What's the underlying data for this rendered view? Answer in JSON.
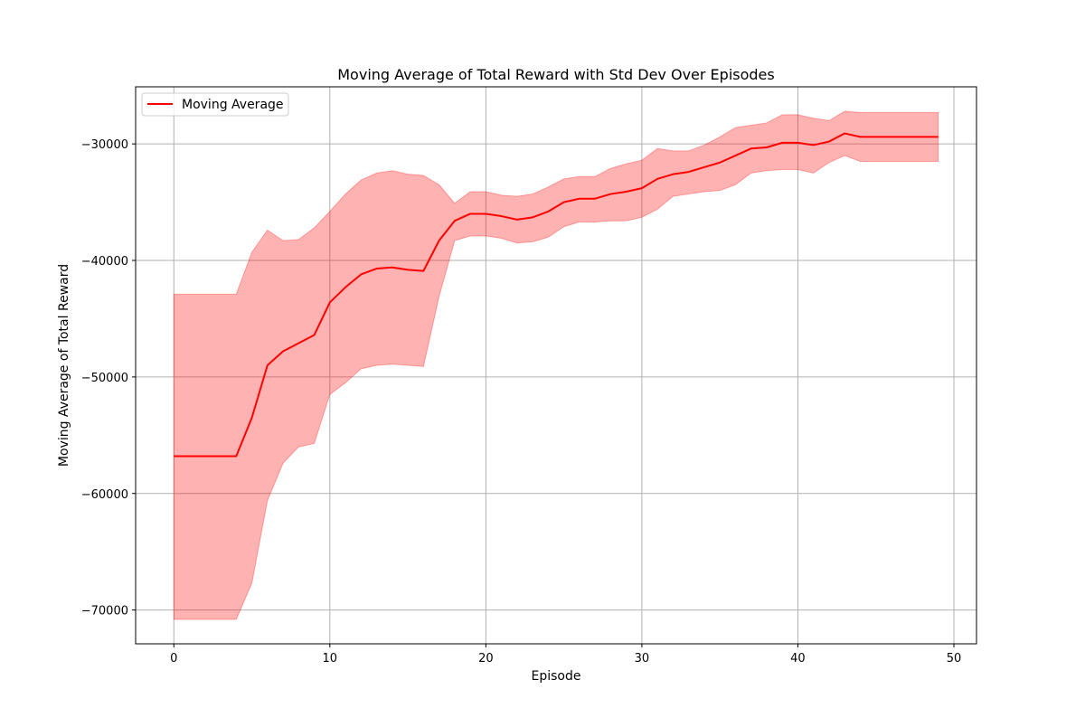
{
  "chart_data": {
    "type": "line",
    "title": "Moving Average of Total Reward with Std Dev Over Episodes",
    "xlabel": "Episode",
    "ylabel": "Moving Average of Total Reward",
    "xlim": [
      -2.45,
      51.45
    ],
    "ylim": [
      -72900,
      -25100
    ],
    "xticks": [
      0,
      10,
      20,
      30,
      40,
      50
    ],
    "xtick_labels": [
      "0",
      "10",
      "20",
      "30",
      "40",
      "50"
    ],
    "yticks": [
      -70000,
      -60000,
      -50000,
      -40000,
      -30000
    ],
    "ytick_labels": [
      "−70000",
      "−60000",
      "−50000",
      "−40000",
      "−30000"
    ],
    "grid": true,
    "legend": {
      "placement": "top-left",
      "entries": [
        "Moving Average"
      ]
    },
    "colors": {
      "line": "#ff0000",
      "band": "#ff0000",
      "band_opacity": 0.3
    },
    "series": [
      {
        "name": "Moving Average",
        "x": [
          0,
          1,
          2,
          3,
          4,
          5,
          6,
          7,
          8,
          9,
          10,
          11,
          12,
          13,
          14,
          15,
          16,
          17,
          18,
          19,
          20,
          21,
          22,
          23,
          24,
          25,
          26,
          27,
          28,
          29,
          30,
          31,
          32,
          33,
          34,
          35,
          36,
          37,
          38,
          39,
          40,
          41,
          42,
          43,
          44,
          45,
          46,
          47,
          48,
          49
        ],
        "y": [
          -56800,
          -56800,
          -56800,
          -56800,
          -56800,
          -53500,
          -49000,
          -47800,
          -47100,
          -46400,
          -43600,
          -42300,
          -41200,
          -40700,
          -40600,
          -40800,
          -40900,
          -38300,
          -36600,
          -36000,
          -36000,
          -36200,
          -36500,
          -36300,
          -35800,
          -35000,
          -34700,
          -34700,
          -34300,
          -34100,
          -33800,
          -33000,
          -32600,
          -32400,
          -32000,
          -31600,
          -31000,
          -30400,
          -30300,
          -29900,
          -29900,
          -30100,
          -29800,
          -29100,
          -29400,
          -29400,
          -29400,
          -29400,
          -29400,
          -29400
        ],
        "lower": [
          -70800,
          -70800,
          -70800,
          -70800,
          -70800,
          -67700,
          -60600,
          -57400,
          -56000,
          -55700,
          -51500,
          -50500,
          -49300,
          -49000,
          -48900,
          -49000,
          -49100,
          -43100,
          -38300,
          -37900,
          -37900,
          -38100,
          -38500,
          -38400,
          -38000,
          -37100,
          -36700,
          -36700,
          -36600,
          -36600,
          -36300,
          -35600,
          -34500,
          -34300,
          -34100,
          -34000,
          -33500,
          -32500,
          -32300,
          -32200,
          -32200,
          -32500,
          -31600,
          -31000,
          -31500,
          -31500,
          -31500,
          -31500,
          -31500,
          -31500
        ],
        "upper": [
          -42900,
          -42900,
          -42900,
          -42900,
          -42900,
          -39300,
          -37400,
          -38300,
          -38200,
          -37200,
          -35800,
          -34300,
          -33100,
          -32500,
          -32300,
          -32600,
          -32700,
          -33500,
          -35100,
          -34100,
          -34100,
          -34400,
          -34500,
          -34300,
          -33700,
          -33000,
          -32800,
          -32800,
          -32100,
          -31700,
          -31400,
          -30400,
          -30600,
          -30600,
          -30100,
          -29400,
          -28600,
          -28400,
          -28200,
          -27500,
          -27500,
          -27800,
          -28000,
          -27200,
          -27300,
          -27300,
          -27300,
          -27300,
          -27300,
          -27300
        ]
      }
    ]
  }
}
